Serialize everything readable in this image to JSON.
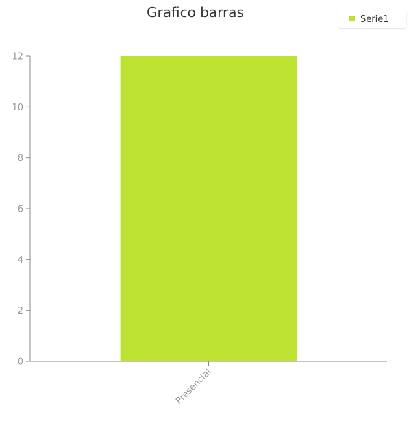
{
  "chart_data": {
    "type": "bar",
    "title": "Grafico barras",
    "xlabel": "",
    "ylabel": "",
    "categories": [
      "Presencial"
    ],
    "series": [
      {
        "name": "Serie1",
        "values": [
          12
        ],
        "color": "#bde232"
      }
    ],
    "ylim": [
      0,
      12
    ],
    "yticks": [
      0,
      2,
      4,
      6,
      8,
      10,
      12
    ],
    "grid": false,
    "legend_position": "top-right",
    "axis_color": "#888888",
    "label_color": "#999999"
  }
}
